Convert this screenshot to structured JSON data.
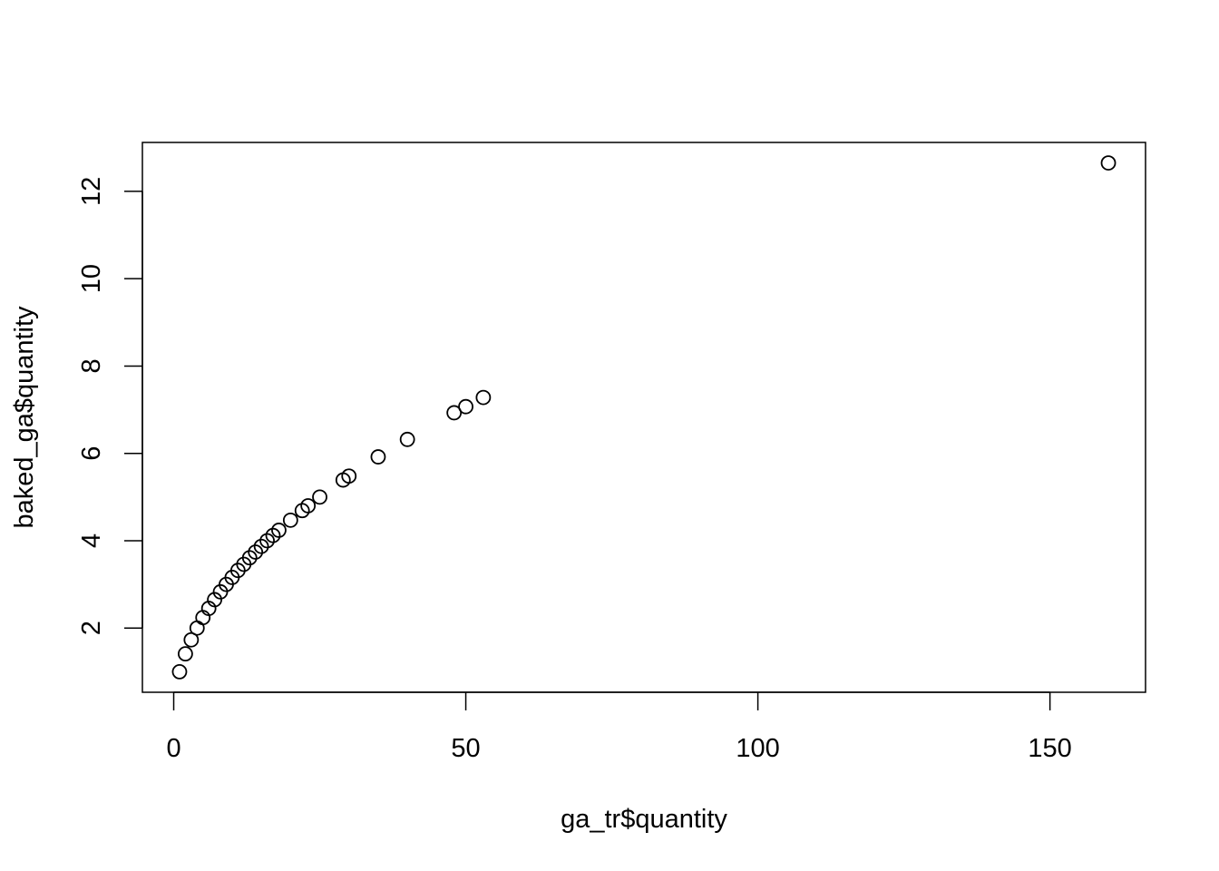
{
  "chart_data": {
    "type": "scatter",
    "xlabel": "ga_tr$quantity",
    "ylabel": "baked_ga$quantity",
    "x": [
      1,
      2,
      3,
      4,
      5,
      6,
      7,
      8,
      9,
      10,
      11,
      12,
      13,
      14,
      15,
      16,
      17,
      18,
      20,
      22,
      23,
      25,
      29,
      30,
      35,
      40,
      48,
      50,
      53,
      160
    ],
    "values": [
      1,
      1.41,
      1.73,
      2,
      2.24,
      2.45,
      2.65,
      2.83,
      3,
      3.16,
      3.32,
      3.46,
      3.61,
      3.74,
      3.87,
      4,
      4.12,
      4.24,
      4.47,
      4.69,
      4.8,
      5,
      5.39,
      5.48,
      5.92,
      6.32,
      6.93,
      7.07,
      7.28,
      12.65
    ],
    "color": "#000000",
    "xlim": [
      -5.36,
      166.36
    ],
    "ylim": [
      0.53,
      13.12
    ],
    "xticks": [
      0,
      50,
      100,
      150
    ],
    "yticks": [
      2,
      4,
      6,
      8,
      10,
      12
    ]
  }
}
